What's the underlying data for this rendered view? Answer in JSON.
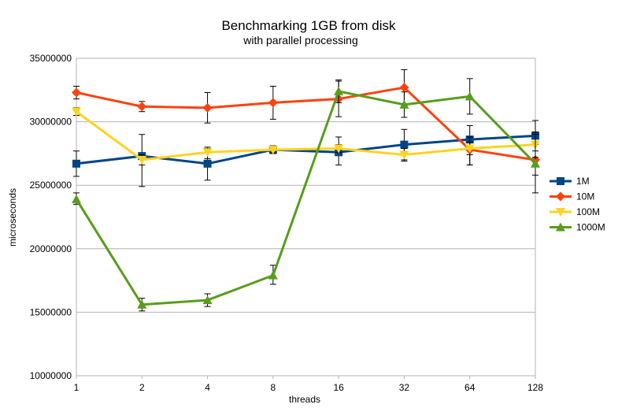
{
  "chart_data": {
    "type": "line",
    "title": "Benchmarking 1GB from disk",
    "subtitle": "with parallel processing",
    "xlabel": "threads",
    "ylabel": "microseconds",
    "categories": [
      "1",
      "2",
      "4",
      "8",
      "16",
      "32",
      "64",
      "128"
    ],
    "ylim": [
      10000000,
      35000000
    ],
    "yticks": [
      10000000,
      15000000,
      20000000,
      25000000,
      30000000,
      35000000
    ],
    "grid": true,
    "legend_position": "right",
    "error_bars": true,
    "series": [
      {
        "name": "1M",
        "color": "#004586",
        "marker": "square",
        "values": [
          26700000,
          27300000,
          26700000,
          27800000,
          27600000,
          28200000,
          28600000,
          28900000
        ],
        "err_low": [
          1000000,
          2400000,
          1300000,
          300000,
          1000000,
          1200000,
          2000000,
          1200000
        ],
        "err_high": [
          1000000,
          1700000,
          1200000,
          300000,
          1200000,
          1200000,
          1100000,
          1200000
        ]
      },
      {
        "name": "10M",
        "color": "#ff420e",
        "marker": "diamond",
        "values": [
          32300000,
          31200000,
          31100000,
          31500000,
          31800000,
          32700000,
          27800000,
          27000000
        ],
        "err_low": [
          500000,
          400000,
          1200000,
          1300000,
          1400000,
          1500000,
          1200000,
          1200000
        ],
        "err_high": [
          500000,
          400000,
          1200000,
          1300000,
          1400000,
          1400000,
          1000000,
          1200000
        ]
      },
      {
        "name": "100M",
        "color": "#ffd320",
        "marker": "triangle-down",
        "values": [
          30800000,
          27000000,
          27600000,
          27800000,
          27900000,
          27400000,
          27900000,
          28200000
        ],
        "err_low": [
          300000,
          400000,
          500000,
          300000,
          300000,
          500000,
          500000,
          1000000
        ],
        "err_high": [
          300000,
          400000,
          400000,
          300000,
          300000,
          500000,
          500000,
          1000000
        ]
      },
      {
        "name": "1000M",
        "color": "#579d1c",
        "marker": "triangle-up",
        "values": [
          23900000,
          15600000,
          15950000,
          17900000,
          32400000,
          31350000,
          32000000,
          26700000
        ],
        "err_low": [
          400000,
          500000,
          500000,
          700000,
          900000,
          1000000,
          1400000,
          2300000
        ],
        "err_high": [
          500000,
          500000,
          500000,
          800000,
          900000,
          1000000,
          1400000,
          2300000
        ]
      }
    ]
  }
}
